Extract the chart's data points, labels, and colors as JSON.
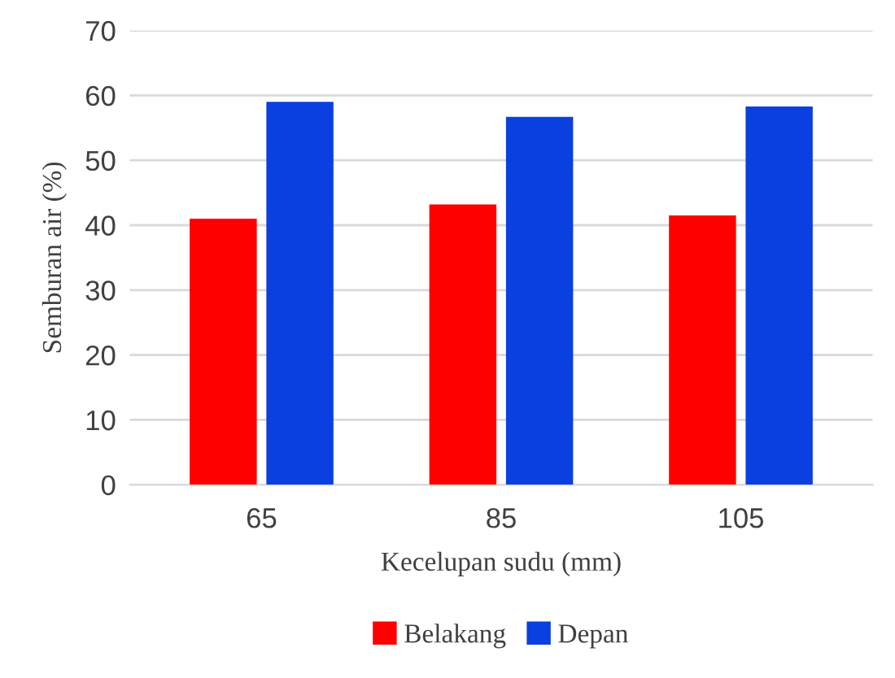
{
  "chart_data": {
    "type": "bar",
    "xlabel": "Kecelupan sudu (mm)",
    "ylabel": "Semburan air (%)",
    "categories": [
      "65",
      "85",
      "105"
    ],
    "series": [
      {
        "name": "Belakang",
        "color": "#ff0000",
        "values": [
          41.0,
          43.2,
          41.5
        ]
      },
      {
        "name": "Depan",
        "color": "#0a3fe0",
        "values": [
          59.0,
          56.7,
          58.3
        ]
      }
    ],
    "ylim": [
      0,
      70
    ],
    "yticks": [
      0,
      10,
      20,
      30,
      40,
      50,
      60,
      70
    ],
    "grid": "y",
    "legend": "bottom"
  }
}
